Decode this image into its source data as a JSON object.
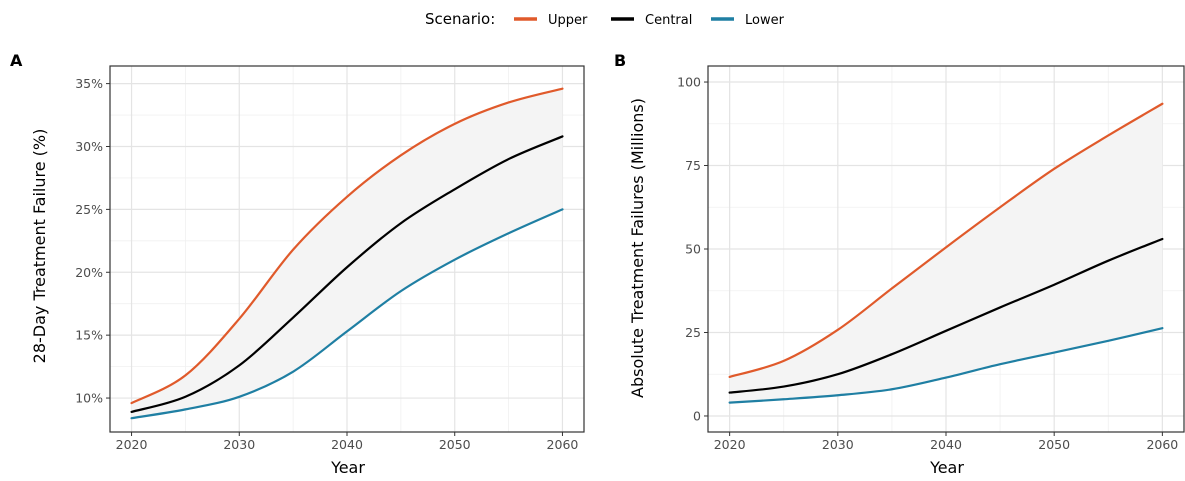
{
  "legend": {
    "title": "Scenario:",
    "items": [
      {
        "label": "Upper",
        "color": "#E05A2B"
      },
      {
        "label": "Central",
        "color": "#000000"
      },
      {
        "label": "Lower",
        "color": "#1F7FA3"
      }
    ]
  },
  "chart_data": [
    {
      "type": "line",
      "panel_label": "A",
      "xlabel": "Year",
      "ylabel": "28-Day Treatment Failure (%)",
      "xlim": [
        2018,
        2062
      ],
      "ylim": [
        7.3,
        36.4
      ],
      "x_ticks": [
        2020,
        2030,
        2040,
        2050,
        2060
      ],
      "y_ticks": [
        10,
        15,
        20,
        25,
        30,
        35
      ],
      "y_tick_labels": [
        "10%",
        "15%",
        "20%",
        "25%",
        "30%",
        "35%"
      ],
      "grid": true,
      "ribbon": {
        "between": [
          "Upper",
          "Lower"
        ],
        "fill": "#f4f4f4"
      },
      "x": [
        2020,
        2025,
        2030,
        2035,
        2040,
        2045,
        2050,
        2055,
        2060
      ],
      "series": [
        {
          "name": "Upper",
          "color": "#E05A2B",
          "values": [
            9.6,
            11.8,
            16.3,
            21.8,
            26.0,
            29.3,
            31.8,
            33.5,
            34.6
          ]
        },
        {
          "name": "Central",
          "color": "#000000",
          "values": [
            8.9,
            10.1,
            12.6,
            16.4,
            20.4,
            23.9,
            26.6,
            29.0,
            30.8
          ]
        },
        {
          "name": "Lower",
          "color": "#1F7FA3",
          "values": [
            8.4,
            9.1,
            10.1,
            12.1,
            15.3,
            18.5,
            21.0,
            23.1,
            25.0
          ]
        }
      ]
    },
    {
      "type": "line",
      "panel_label": "B",
      "xlabel": "Year",
      "ylabel": "Absolute Treatment Failures (Millions)",
      "xlim": [
        2018,
        2062
      ],
      "ylim": [
        -4.8,
        104.8
      ],
      "x_ticks": [
        2020,
        2030,
        2040,
        2050,
        2060
      ],
      "y_ticks": [
        0,
        25,
        50,
        75,
        100
      ],
      "y_tick_labels": [
        "0",
        "25",
        "50",
        "75",
        "100"
      ],
      "grid": true,
      "ribbon": {
        "between": [
          "Upper",
          "Lower"
        ],
        "fill": "#f4f4f4"
      },
      "x": [
        2020,
        2025,
        2030,
        2035,
        2040,
        2045,
        2050,
        2055,
        2060
      ],
      "series": [
        {
          "name": "Upper",
          "color": "#E05A2B",
          "values": [
            11.7,
            16.5,
            25.8,
            38.2,
            50.5,
            62.5,
            74.0,
            84.0,
            93.5
          ]
        },
        {
          "name": "Central",
          "color": "#000000",
          "values": [
            7.0,
            8.8,
            12.5,
            18.5,
            25.5,
            32.5,
            39.3,
            46.5,
            53.0
          ]
        },
        {
          "name": "Lower",
          "color": "#1F7FA3",
          "values": [
            4.0,
            5.0,
            6.2,
            8.0,
            11.5,
            15.5,
            19.0,
            22.5,
            26.3
          ]
        }
      ]
    }
  ]
}
